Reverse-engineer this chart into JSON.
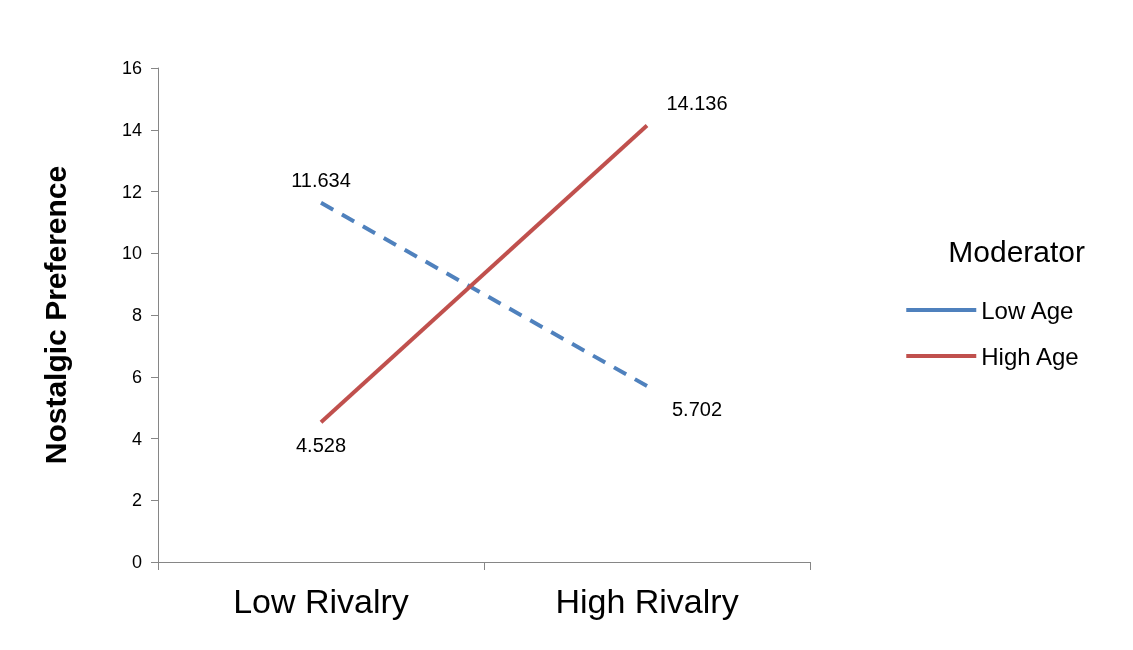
{
  "chart_data": {
    "type": "line",
    "ylabel": "Nostalgic Preference",
    "legend_title": "Moderator",
    "categories": [
      "Low Rivalry",
      "High Rivalry"
    ],
    "series": [
      {
        "name": "Low Age",
        "color": "#4f81bd",
        "line_style": "dashed",
        "values": [
          11.634,
          5.702
        ]
      },
      {
        "name": "High Age",
        "color": "#c0504d",
        "line_style": "solid",
        "values": [
          4.528,
          14.136
        ]
      }
    ],
    "ylim": [
      0,
      16
    ],
    "yticks": [
      0,
      2,
      4,
      6,
      8,
      10,
      12,
      14,
      16
    ],
    "grid": false,
    "legend": "right",
    "marker": "none",
    "data_labels": true
  }
}
